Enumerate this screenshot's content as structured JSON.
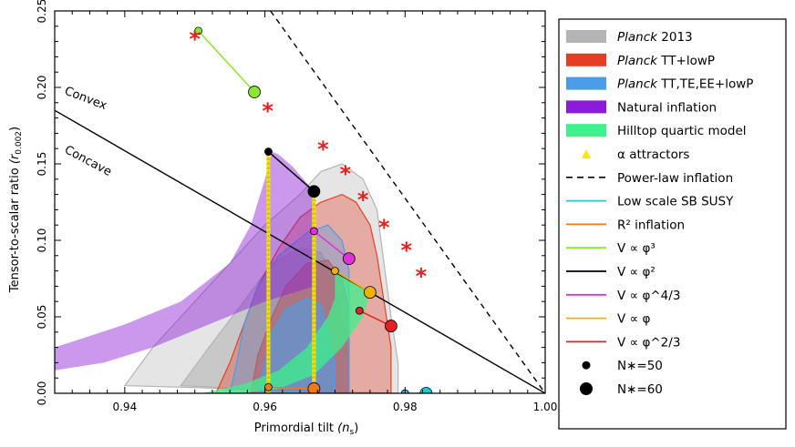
{
  "chart_data": {
    "type": "scatter",
    "xlabel": "Primordial tilt",
    "xlabel_symbol": "(n",
    "xlabel_sub": "s",
    "ylabel": "Tensor-to-scalar ratio",
    "ylabel_symbol": "(r",
    "ylabel_sub": "0.002",
    "xlim": [
      0.93,
      1.0
    ],
    "ylim": [
      0.0,
      0.25
    ],
    "xticks": [
      "0.94",
      "0.96",
      "0.98",
      "1.00"
    ],
    "xtick_values": [
      0.94,
      0.96,
      0.98,
      1.0
    ],
    "yticks": [
      "0.00",
      "0.05",
      "0.10",
      "0.15",
      "0.20",
      "0.25"
    ],
    "ytick_values": [
      0.0,
      0.05,
      0.1,
      0.15,
      0.2,
      0.25
    ],
    "grid": false,
    "legend_position": "right",
    "annotations": [
      {
        "id": "convex",
        "text": "Convex",
        "x": 0.9335,
        "y": 0.194
      },
      {
        "id": "concave",
        "text": "Concave",
        "x": 0.9335,
        "y": 0.16
      }
    ],
    "contours": {
      "planck_2013": {
        "color": "#b4b4b4",
        "outer": [
          [
            0.94,
            0.005
          ],
          [
            0.944,
            0.03
          ],
          [
            0.95,
            0.06
          ],
          [
            0.955,
            0.085
          ],
          [
            0.96,
            0.11
          ],
          [
            0.965,
            0.13
          ],
          [
            0.968,
            0.145
          ],
          [
            0.971,
            0.15
          ],
          [
            0.974,
            0.14
          ],
          [
            0.976,
            0.12
          ],
          [
            0.977,
            0.085
          ],
          [
            0.978,
            0.05
          ],
          [
            0.979,
            0.02
          ],
          [
            0.979,
            0.0
          ]
        ],
        "inner": [
          [
            0.948,
            0.005
          ],
          [
            0.952,
            0.03
          ],
          [
            0.957,
            0.06
          ],
          [
            0.961,
            0.085
          ],
          [
            0.965,
            0.095
          ],
          [
            0.968,
            0.092
          ],
          [
            0.97,
            0.075
          ],
          [
            0.971,
            0.05
          ],
          [
            0.972,
            0.02
          ],
          [
            0.972,
            0.0
          ]
        ]
      },
      "planck_tt_lowp": {
        "color": "#e63e25",
        "outer": [
          [
            0.953,
            0.0
          ],
          [
            0.955,
            0.02
          ],
          [
            0.957,
            0.045
          ],
          [
            0.959,
            0.07
          ],
          [
            0.962,
            0.095
          ],
          [
            0.965,
            0.115
          ],
          [
            0.968,
            0.125
          ],
          [
            0.971,
            0.13
          ],
          [
            0.973,
            0.125
          ],
          [
            0.975,
            0.11
          ],
          [
            0.976,
            0.09
          ],
          [
            0.977,
            0.06
          ],
          [
            0.978,
            0.03
          ],
          [
            0.978,
            0.0
          ]
        ],
        "inner": [
          [
            0.958,
            0.0
          ],
          [
            0.959,
            0.025
          ],
          [
            0.961,
            0.05
          ],
          [
            0.963,
            0.07
          ],
          [
            0.966,
            0.085
          ],
          [
            0.969,
            0.087
          ],
          [
            0.971,
            0.075
          ],
          [
            0.972,
            0.055
          ],
          [
            0.972,
            0.03
          ],
          [
            0.972,
            0.0
          ]
        ]
      },
      "planck_tt_te_ee_lowp": {
        "color": "#4c9ce8",
        "outer": [
          [
            0.955,
            0.0
          ],
          [
            0.956,
            0.02
          ],
          [
            0.957,
            0.045
          ],
          [
            0.959,
            0.07
          ],
          [
            0.962,
            0.09
          ],
          [
            0.966,
            0.105
          ],
          [
            0.969,
            0.11
          ],
          [
            0.971,
            0.1
          ],
          [
            0.972,
            0.08
          ],
          [
            0.972,
            0.05
          ],
          [
            0.972,
            0.02
          ],
          [
            0.972,
            0.0
          ]
        ],
        "inner": [
          [
            0.959,
            0.0
          ],
          [
            0.96,
            0.02
          ],
          [
            0.961,
            0.04
          ],
          [
            0.963,
            0.055
          ],
          [
            0.966,
            0.062
          ],
          [
            0.968,
            0.058
          ],
          [
            0.969,
            0.04
          ],
          [
            0.97,
            0.02
          ],
          [
            0.97,
            0.0
          ]
        ]
      }
    },
    "natural_inflation": {
      "color": "#8b1bd8",
      "upper": [
        [
          0.93,
          0.03
        ],
        [
          0.94,
          0.045
        ],
        [
          0.948,
          0.06
        ],
        [
          0.955,
          0.085
        ],
        [
          0.958,
          0.11
        ],
        [
          0.96,
          0.14
        ],
        [
          0.961,
          0.158
        ],
        [
          0.962,
          0.156
        ],
        [
          0.964,
          0.148
        ],
        [
          0.967,
          0.132
        ]
      ],
      "lower": [
        [
          0.967,
          0.07
        ],
        [
          0.96,
          0.06
        ],
        [
          0.952,
          0.045
        ],
        [
          0.944,
          0.03
        ],
        [
          0.937,
          0.02
        ],
        [
          0.93,
          0.015
        ]
      ]
    },
    "hilltop_quartic": {
      "color": "#3df28c",
      "upper": [
        [
          0.951,
          0.0
        ],
        [
          0.957,
          0.006
        ],
        [
          0.962,
          0.015
        ],
        [
          0.966,
          0.03
        ],
        [
          0.969,
          0.05
        ],
        [
          0.97,
          0.062
        ],
        [
          0.97,
          0.08
        ],
        [
          0.975,
          0.066
        ]
      ],
      "lower": [
        [
          0.974,
          0.05
        ],
        [
          0.971,
          0.03
        ],
        [
          0.967,
          0.012
        ],
        [
          0.962,
          0.003
        ],
        [
          0.956,
          0.0
        ]
      ]
    },
    "lines": {
      "power_law": {
        "color": "#000000",
        "dash": true,
        "points": [
          [
            0.9608,
            0.25
          ],
          [
            1.0,
            0.0
          ]
        ]
      },
      "phi2_line": {
        "color": "#000000",
        "points": [
          [
            0.93,
            0.185
          ],
          [
            1.0,
            0.0
          ]
        ]
      }
    },
    "series": [
      {
        "name": "V ∝ φ^3",
        "color": "#8be632",
        "points": [
          [
            0.9505,
            0.237
          ],
          [
            0.9585,
            0.197
          ]
        ]
      },
      {
        "name": "V ∝ φ^2",
        "color": "#000000",
        "points": [
          [
            0.9605,
            0.158
          ],
          [
            0.967,
            0.132
          ]
        ]
      },
      {
        "name": "V ∝ φ^{4/3}",
        "color": "#e030d8",
        "points": [
          [
            0.967,
            0.106
          ],
          [
            0.972,
            0.088
          ]
        ]
      },
      {
        "name": "V ∝ φ",
        "color": "#f4b000",
        "points": [
          [
            0.97,
            0.08
          ],
          [
            0.975,
            0.066
          ]
        ]
      },
      {
        "name": "V ∝ φ^{2/3}",
        "color": "#e22222",
        "points": [
          [
            0.9735,
            0.054
          ],
          [
            0.978,
            0.044
          ]
        ]
      },
      {
        "name": "Low scale SB SUSY",
        "color": "#22c4d8",
        "points": [
          [
            0.98,
            0.0
          ],
          [
            0.983,
            0.0
          ]
        ]
      },
      {
        "name": "R^2 inflation",
        "color": "#f07a1a",
        "points": [
          [
            0.9605,
            0.004
          ],
          [
            0.967,
            0.003
          ]
        ]
      }
    ],
    "alpha_attractors": {
      "color": "#f6e61a",
      "lines": [
        [
          [
            0.9605,
            0.0
          ],
          [
            0.9605,
            0.158
          ]
        ],
        [
          [
            0.967,
            0.0
          ],
          [
            0.967,
            0.132
          ]
        ]
      ]
    },
    "stars": {
      "color": "#e62020",
      "points": [
        [
          0.95,
          0.232
        ],
        [
          0.9604,
          0.185
        ],
        [
          0.9683,
          0.16
        ],
        [
          0.9715,
          0.144
        ],
        [
          0.974,
          0.127
        ],
        [
          0.977,
          0.109
        ],
        [
          0.9802,
          0.094
        ],
        [
          0.9823,
          0.077
        ]
      ]
    },
    "legend": [
      {
        "label": "Planck",
        "label_rest": " 2013",
        "italic_first": true,
        "kind": "fill",
        "color": "#b4b4b4"
      },
      {
        "label": "Planck",
        "label_rest": " TT+lowP",
        "italic_first": true,
        "kind": "fill",
        "color": "#e63e25"
      },
      {
        "label": "Planck",
        "label_rest": " TT,TE,EE+lowP",
        "italic_first": true,
        "kind": "fill",
        "color": "#4c9ce8"
      },
      {
        "label": "Natural inflation",
        "kind": "fill",
        "color": "#8b1bd8"
      },
      {
        "label": "Hilltop quartic model",
        "kind": "fill",
        "color": "#3df28c"
      },
      {
        "label": "α attractors",
        "kind": "triangle",
        "color": "#f6e61a"
      },
      {
        "label": "Power-law inflation",
        "kind": "dashed",
        "color": "#000000"
      },
      {
        "label": "Low scale SB SUSY",
        "kind": "line",
        "color": "#22c4d8"
      },
      {
        "label": "R² inflation",
        "kind": "line",
        "color": "#f07a1a"
      },
      {
        "label": "V ∝ φ³",
        "kind": "line",
        "color": "#8be632"
      },
      {
        "label": "V ∝ φ²",
        "kind": "line",
        "color": "#000000"
      },
      {
        "label": "V ∝ φ^4/3",
        "kind": "line",
        "color": "#e030d8"
      },
      {
        "label": "V ∝ φ",
        "kind": "line",
        "color": "#f4b000"
      },
      {
        "label": "V ∝ φ^2/3",
        "kind": "line",
        "color": "#e22222"
      },
      {
        "label": "N∗=50",
        "kind": "dot-small",
        "color": "#000000"
      },
      {
        "label": "N∗=60",
        "kind": "dot-large",
        "color": "#000000"
      }
    ]
  }
}
